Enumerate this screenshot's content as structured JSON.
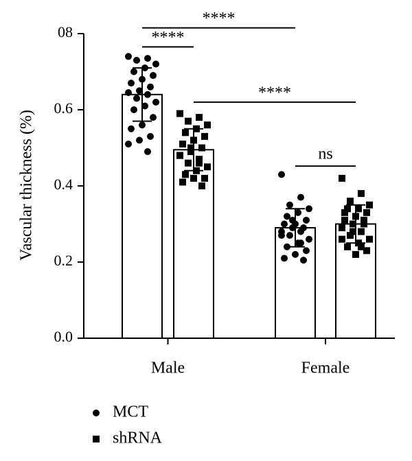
{
  "chart_data": {
    "type": "bar",
    "ylabel": "Vascular thickness (%)",
    "categories": [
      "Male",
      "Female"
    ],
    "ylim": [
      0,
      0.8
    ],
    "yticks": [
      0.0,
      0.2,
      0.4,
      0.6,
      {
        "value": 0.8,
        "label": "08"
      }
    ],
    "ytick_labels": [
      "0.0",
      "0.2",
      "0.4",
      "0.6"
    ],
    "series": [
      {
        "name": "MCT",
        "marker": "circle",
        "color": "#000000",
        "bar_fill": "#ffffff",
        "values": [
          0.64,
          0.29
        ],
        "errors": [
          0.07,
          0.05
        ],
        "points": [
          [
            0.74,
            0.735,
            0.73,
            0.72,
            0.71,
            0.7,
            0.69,
            0.68,
            0.67,
            0.66,
            0.65,
            0.645,
            0.64,
            0.63,
            0.62,
            0.61,
            0.6,
            0.58,
            0.56,
            0.55,
            0.53,
            0.52,
            0.51,
            0.49
          ],
          [
            0.43,
            0.37,
            0.35,
            0.34,
            0.33,
            0.32,
            0.31,
            0.3,
            0.3,
            0.29,
            0.29,
            0.28,
            0.28,
            0.27,
            0.26,
            0.25,
            0.24,
            0.23,
            0.22,
            0.21,
            0.205,
            0.31,
            0.27,
            0.25
          ]
        ]
      },
      {
        "name": "shRNA",
        "marker": "square",
        "color": "#000000",
        "bar_fill": "#ffffff",
        "values": [
          0.495,
          0.3
        ],
        "errors": [
          0.055,
          0.05
        ],
        "points": [
          [
            0.59,
            0.58,
            0.57,
            0.56,
            0.55,
            0.54,
            0.53,
            0.52,
            0.51,
            0.5,
            0.49,
            0.48,
            0.47,
            0.46,
            0.45,
            0.44,
            0.43,
            0.42,
            0.42,
            0.41,
            0.4,
            0.5,
            0.48,
            0.46
          ],
          [
            0.42,
            0.38,
            0.36,
            0.35,
            0.34,
            0.34,
            0.33,
            0.32,
            0.31,
            0.31,
            0.3,
            0.29,
            0.28,
            0.27,
            0.26,
            0.25,
            0.24,
            0.23,
            0.22,
            0.33,
            0.3,
            0.28,
            0.26,
            0.24
          ]
        ]
      }
    ],
    "annotations": [
      {
        "label": "****",
        "y": 0.815,
        "from": [
          0,
          0
        ],
        "to": [
          1,
          0
        ]
      },
      {
        "label": "****",
        "y": 0.765,
        "from": [
          0,
          0
        ],
        "to": [
          0,
          1
        ]
      },
      {
        "label": "****",
        "y": 0.62,
        "from": [
          0,
          1
        ],
        "to": [
          1,
          1
        ]
      },
      {
        "label": "ns",
        "y": 0.452,
        "from": [
          1,
          0
        ],
        "to": [
          1,
          1
        ]
      }
    ]
  }
}
